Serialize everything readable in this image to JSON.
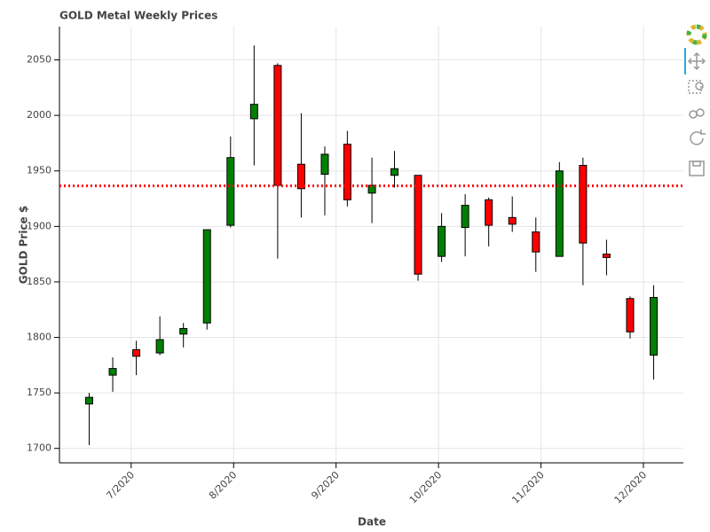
{
  "chart_data": {
    "type": "candlestick",
    "title": "GOLD Metal Weekly Prices",
    "x_label": "Date",
    "y_label": "GOLD Price $",
    "x": [
      6.59,
      6.82,
      7.05,
      7.28,
      7.51,
      7.74,
      7.97,
      8.2,
      8.43,
      8.66,
      8.89,
      9.11,
      9.35,
      9.57,
      9.8,
      10.03,
      10.26,
      10.49,
      10.72,
      10.95,
      11.18,
      11.41,
      11.64,
      11.87,
      12.1
    ],
    "open": [
      1740,
      1766,
      1789,
      1786,
      1803,
      1813,
      1901,
      1997,
      2045,
      1956,
      1947,
      1974,
      1930,
      1946,
      1946,
      1873,
      1899,
      1924,
      1908,
      1895,
      1873,
      1955,
      1875,
      1835,
      1784
    ],
    "high": [
      1750,
      1782,
      1797,
      1819,
      1813,
      1897,
      1981,
      2063,
      2047,
      2002,
      1972,
      1986,
      1962,
      1968,
      1946,
      1912,
      1929,
      1926,
      1927,
      1908,
      1958,
      1962,
      1888,
      1837,
      1847
    ],
    "low": [
      1703,
      1751,
      1766,
      1784,
      1791,
      1807,
      1899,
      1955,
      1871,
      1908,
      1910,
      1918,
      1903,
      1935,
      1851,
      1868,
      1873,
      1882,
      1895,
      1859,
      1873,
      1847,
      1856,
      1799,
      1762
    ],
    "close": [
      1746,
      1772,
      1783,
      1798,
      1808,
      1897,
      1962,
      2010,
      1937,
      1934,
      1965,
      1924,
      1937,
      1952,
      1857,
      1900,
      1919,
      1901,
      1902,
      1877,
      1950,
      1885,
      1872,
      1805,
      1836
    ],
    "up_color": "green",
    "down_color": "red",
    "hline": {
      "value": 1936.5,
      "color": "red"
    },
    "xlim": [
      6.3,
      12.39
    ],
    "xticks": [
      {
        "value": 7,
        "label": "7/2020"
      },
      {
        "value": 8,
        "label": "8/2020"
      },
      {
        "value": 9,
        "label": "9/2020"
      },
      {
        "value": 10,
        "label": "10/2020"
      },
      {
        "value": 11,
        "label": "11/2020"
      },
      {
        "value": 12,
        "label": "12/2020"
      }
    ],
    "ylim": [
      1687,
      2080
    ],
    "yticks": [
      1700,
      1750,
      1800,
      1850,
      1900,
      1950,
      2000,
      2050
    ],
    "grid": true
  }
}
